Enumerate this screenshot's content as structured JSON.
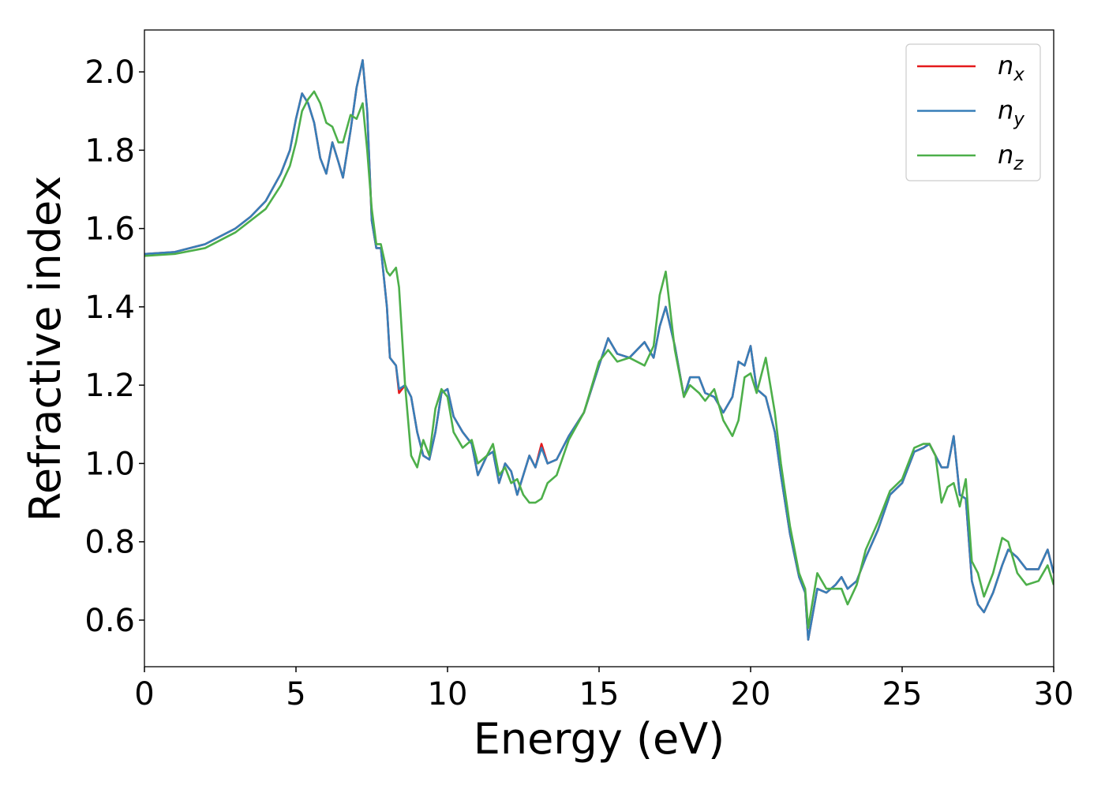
{
  "chart_data": {
    "type": "line",
    "xlabel": "Energy (eV)",
    "ylabel": "Refractive index",
    "x": [
      0,
      1,
      2,
      3,
      3.5,
      4,
      4.5,
      4.8,
      5,
      5.2,
      5.4,
      5.6,
      5.8,
      6,
      6.2,
      6.4,
      6.55,
      6.8,
      7,
      7.2,
      7.35,
      7.5,
      7.65,
      7.8,
      8,
      8.1,
      8.3,
      8.4,
      8.6,
      8.8,
      9,
      9.2,
      9.4,
      9.6,
      9.8,
      10,
      10.2,
      10.5,
      10.8,
      11,
      11.3,
      11.5,
      11.7,
      11.9,
      12.1,
      12.3,
      12.5,
      12.7,
      12.9,
      13.1,
      13.3,
      13.6,
      14,
      14.5,
      15,
      15.3,
      15.6,
      16,
      16.5,
      16.8,
      17,
      17.2,
      17.5,
      17.8,
      18,
      18.3,
      18.5,
      18.8,
      19.1,
      19.4,
      19.6,
      19.8,
      20,
      20.2,
      20.5,
      20.8,
      21,
      21.3,
      21.6,
      21.8,
      21.9,
      22.2,
      22.5,
      22.8,
      23,
      23.2,
      23.5,
      23.8,
      24.2,
      24.6,
      25,
      25.4,
      25.7,
      25.9,
      26.1,
      26.3,
      26.5,
      26.7,
      26.9,
      27.1,
      27.3,
      27.5,
      27.7,
      28,
      28.3,
      28.5,
      28.8,
      29.1,
      29.5,
      29.8,
      30
    ],
    "series": [
      {
        "name": "nx",
        "color": "#e41a1c",
        "values": [
          1.535,
          1.54,
          1.56,
          1.6,
          1.63,
          1.67,
          1.74,
          1.8,
          1.88,
          1.945,
          1.92,
          1.87,
          1.78,
          1.74,
          1.82,
          1.77,
          1.73,
          1.85,
          1.96,
          2.03,
          1.9,
          1.62,
          1.55,
          1.55,
          1.4,
          1.27,
          1.25,
          1.18,
          1.2,
          1.17,
          1.08,
          1.02,
          1.01,
          1.08,
          1.18,
          1.19,
          1.12,
          1.08,
          1.05,
          0.97,
          1.02,
          1.03,
          0.95,
          1.0,
          0.98,
          0.92,
          0.97,
          1.02,
          0.99,
          1.05,
          1.0,
          1.01,
          1.07,
          1.13,
          1.25,
          1.32,
          1.28,
          1.27,
          1.31,
          1.27,
          1.35,
          1.4,
          1.3,
          1.17,
          1.22,
          1.22,
          1.18,
          1.17,
          1.13,
          1.17,
          1.26,
          1.25,
          1.3,
          1.19,
          1.17,
          1.08,
          0.97,
          0.82,
          0.71,
          0.67,
          0.55,
          0.68,
          0.67,
          0.69,
          0.71,
          0.68,
          0.7,
          0.76,
          0.83,
          0.92,
          0.95,
          1.03,
          1.04,
          1.05,
          1.02,
          0.99,
          0.99,
          1.07,
          0.92,
          0.91,
          0.7,
          0.64,
          0.62,
          0.67,
          0.74,
          0.78,
          0.76,
          0.73,
          0.73,
          0.78,
          0.72
        ]
      },
      {
        "name": "ny",
        "color": "#377eb8",
        "values": [
          1.535,
          1.54,
          1.56,
          1.6,
          1.63,
          1.67,
          1.74,
          1.8,
          1.88,
          1.945,
          1.92,
          1.87,
          1.78,
          1.74,
          1.82,
          1.77,
          1.73,
          1.85,
          1.96,
          2.03,
          1.9,
          1.62,
          1.55,
          1.55,
          1.4,
          1.27,
          1.25,
          1.19,
          1.2,
          1.17,
          1.08,
          1.02,
          1.01,
          1.08,
          1.18,
          1.19,
          1.12,
          1.08,
          1.05,
          0.97,
          1.02,
          1.03,
          0.95,
          1.0,
          0.98,
          0.92,
          0.97,
          1.02,
          0.99,
          1.04,
          1.0,
          1.01,
          1.07,
          1.13,
          1.25,
          1.32,
          1.28,
          1.27,
          1.31,
          1.27,
          1.35,
          1.4,
          1.3,
          1.17,
          1.22,
          1.22,
          1.18,
          1.17,
          1.13,
          1.17,
          1.26,
          1.25,
          1.3,
          1.19,
          1.17,
          1.08,
          0.97,
          0.82,
          0.71,
          0.67,
          0.55,
          0.68,
          0.67,
          0.69,
          0.71,
          0.68,
          0.7,
          0.76,
          0.83,
          0.92,
          0.95,
          1.03,
          1.04,
          1.05,
          1.02,
          0.99,
          0.99,
          1.07,
          0.92,
          0.91,
          0.7,
          0.64,
          0.62,
          0.67,
          0.74,
          0.78,
          0.76,
          0.73,
          0.73,
          0.78,
          0.72
        ]
      },
      {
        "name": "nz",
        "color": "#4daf4a",
        "values": [
          1.53,
          1.535,
          1.55,
          1.59,
          1.62,
          1.65,
          1.71,
          1.76,
          1.82,
          1.9,
          1.93,
          1.95,
          1.92,
          1.87,
          1.86,
          1.82,
          1.82,
          1.89,
          1.88,
          1.92,
          1.8,
          1.65,
          1.56,
          1.56,
          1.49,
          1.48,
          1.5,
          1.45,
          1.2,
          1.02,
          0.99,
          1.06,
          1.02,
          1.14,
          1.19,
          1.17,
          1.08,
          1.04,
          1.06,
          1.0,
          1.02,
          1.05,
          0.97,
          0.99,
          0.95,
          0.96,
          0.92,
          0.9,
          0.9,
          0.91,
          0.95,
          0.97,
          1.06,
          1.13,
          1.26,
          1.29,
          1.26,
          1.27,
          1.25,
          1.3,
          1.43,
          1.49,
          1.29,
          1.17,
          1.2,
          1.18,
          1.16,
          1.19,
          1.11,
          1.07,
          1.11,
          1.22,
          1.23,
          1.18,
          1.27,
          1.13,
          1.0,
          0.84,
          0.72,
          0.68,
          0.58,
          0.72,
          0.68,
          0.68,
          0.68,
          0.64,
          0.69,
          0.78,
          0.85,
          0.93,
          0.96,
          1.04,
          1.05,
          1.05,
          1.02,
          0.9,
          0.94,
          0.95,
          0.89,
          0.96,
          0.75,
          0.72,
          0.66,
          0.72,
          0.81,
          0.8,
          0.72,
          0.69,
          0.7,
          0.74,
          0.69
        ]
      }
    ],
    "xlim": [
      0,
      30
    ],
    "xticks": [
      0,
      5,
      10,
      15,
      20,
      25,
      30
    ],
    "ylim": [
      0.481,
      2.107
    ],
    "yticks": [
      0.6,
      0.8,
      {
        "value": 1,
        "label": "1.0"
      },
      1.2,
      1.4,
      1.6,
      1.8,
      {
        "value": 2,
        "label": "2.0"
      }
    ],
    "legend": "upper right"
  }
}
